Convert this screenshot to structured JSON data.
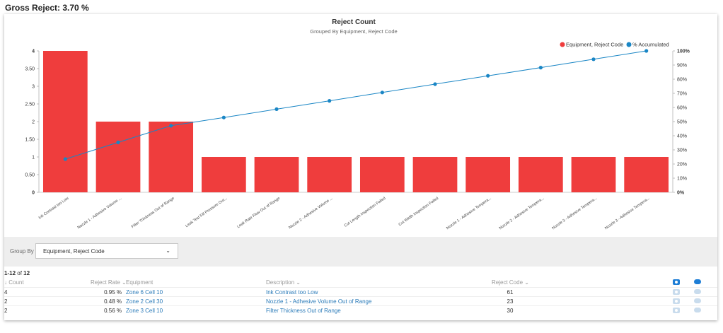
{
  "header": {
    "gross_reject": "Gross Reject: 3.70 %"
  },
  "chart_data": {
    "type": "bar",
    "title": "Reject Count",
    "subtitle": "Grouped By Equipment, Reject Code",
    "categories": [
      "Ink Contrast too Low",
      "Nozzle 1 - Adhesive Volume ...",
      "Filter Thickness Out of Range",
      "Leak Test Fill Pressure Out...",
      "Leak Rate Flow Out of Range",
      "Nozzle 2 - Adhesive Volume ...",
      "Cut Length Inspection Failed",
      "Cut Width Inspection Failed",
      "Nozzle 1 - Adhesive Tempera...",
      "Nozzle 2 - Adhesive Tempera...",
      "Nozzle 3 - Adhesive Tempera...",
      "Nozzle 3 - Adhesive Tempera..."
    ],
    "series": [
      {
        "name": "Equipment, Reject Code",
        "type": "bar",
        "axis": "left",
        "color": "#ef3d3d",
        "values": [
          4,
          2,
          2,
          1,
          1,
          1,
          1,
          1,
          1,
          1,
          1,
          1
        ]
      },
      {
        "name": "% Accumulated",
        "type": "line",
        "axis": "right",
        "color": "#1a86c5",
        "values": [
          23.5,
          35.3,
          47.1,
          52.9,
          58.8,
          64.7,
          70.6,
          76.5,
          82.4,
          88.2,
          94.1,
          100
        ]
      }
    ],
    "y_left": {
      "ylim": [
        0,
        4
      ],
      "ticks": [
        "0",
        "0.50",
        "1",
        "1.50",
        "2",
        "2.50",
        "3",
        "3.50",
        "4"
      ]
    },
    "y_right": {
      "ylim": [
        0,
        100
      ],
      "ticks": [
        "0%",
        "10%",
        "20%",
        "30%",
        "40%",
        "50%",
        "60%",
        "70%",
        "80%",
        "90%",
        "100%"
      ]
    },
    "legend": "top-right",
    "grid": false
  },
  "controls": {
    "group_by_label": "Group By",
    "group_by_value": "Equipment, Reject Code"
  },
  "pager": {
    "range": "1-12",
    "of": " of ",
    "total": "12"
  },
  "table": {
    "headers": {
      "count": "Count",
      "reject_rate": "Reject Rate",
      "equipment": "Equipment",
      "description": "Description",
      "reject_code": "Reject Code"
    },
    "rows": [
      {
        "count": "4",
        "reject_rate": "0.95 %",
        "equipment": "Zone 6 Cell 10",
        "description": "Ink Contrast too Low",
        "reject_code": "61"
      },
      {
        "count": "2",
        "reject_rate": "0.48 %",
        "equipment": "Zone 2 Cell 30",
        "description": "Nozzle 1 - Adhesive Volume Out of Range",
        "reject_code": "23"
      },
      {
        "count": "2",
        "reject_rate": "0.56 %",
        "equipment": "Zone 3 Cell 10",
        "description": "Filter Thickness Out of Range",
        "reject_code": "30"
      }
    ]
  },
  "icons": {
    "camera": "camera-icon",
    "comment": "comment-icon",
    "sort": "sort-down-icon"
  }
}
